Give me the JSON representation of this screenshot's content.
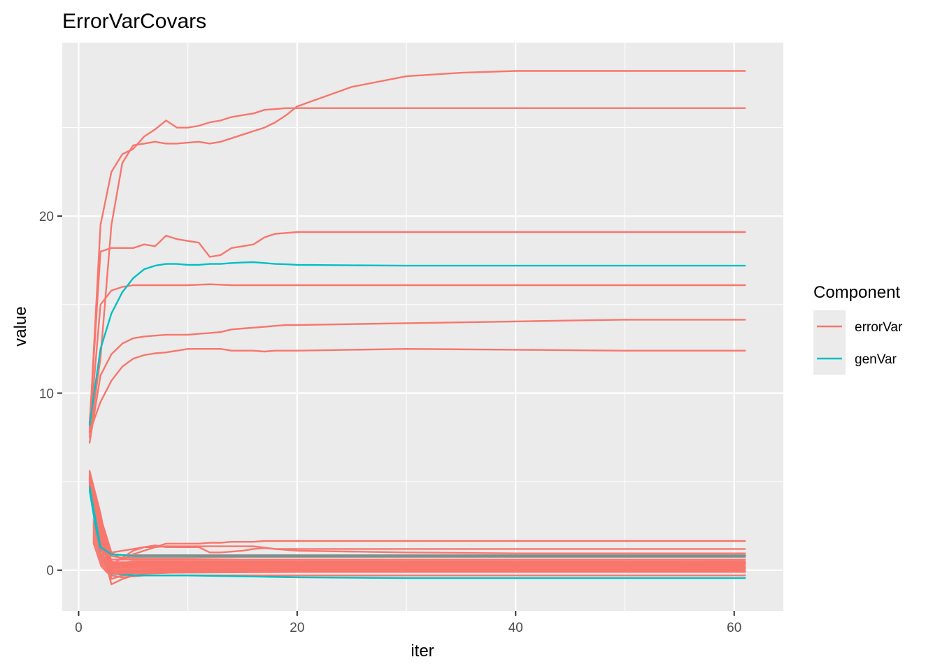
{
  "chart_data": {
    "type": "line",
    "title": "ErrorVarCovars",
    "xlabel": "iter",
    "ylabel": "value",
    "xlim": [
      -1.5,
      64.5
    ],
    "ylim": [
      -2.3,
      29.8
    ],
    "x_ticks": [
      0,
      20,
      40,
      60
    ],
    "y_ticks": [
      0,
      10,
      20
    ],
    "grid": true,
    "legend": {
      "title": "Component",
      "placement": "right",
      "entries": [
        {
          "label": "errorVar",
          "color": "#F8766D"
        },
        {
          "label": "genVar",
          "color": "#00BFC4"
        }
      ]
    },
    "series": [
      {
        "component": "errorVar",
        "x": [
          1,
          2,
          3,
          4,
          5,
          6,
          7,
          8,
          9,
          10,
          11,
          12,
          13,
          14,
          15,
          16,
          17,
          18,
          19,
          20,
          25,
          30,
          35,
          40,
          45,
          50,
          55,
          61
        ],
        "values": [
          7.5,
          12.0,
          19.5,
          23.0,
          24.0,
          24.1,
          24.2,
          24.1,
          24.1,
          24.15,
          24.2,
          24.1,
          24.2,
          24.4,
          24.6,
          24.8,
          25.0,
          25.3,
          25.7,
          26.2,
          27.3,
          27.9,
          28.1,
          28.2,
          28.2,
          28.2,
          28.2,
          28.2
        ]
      },
      {
        "component": "errorVar",
        "x": [
          1,
          2,
          3,
          4,
          5,
          6,
          7,
          8,
          9,
          10,
          11,
          12,
          13,
          14,
          15,
          16,
          17,
          18,
          19,
          20,
          30,
          40,
          50,
          61
        ],
        "values": [
          8.0,
          19.5,
          22.5,
          23.5,
          23.8,
          24.5,
          24.9,
          25.4,
          25.0,
          25.0,
          25.1,
          25.3,
          25.4,
          25.6,
          25.7,
          25.8,
          26.0,
          26.05,
          26.1,
          26.1,
          26.1,
          26.1,
          26.1,
          26.1
        ]
      },
      {
        "component": "errorVar",
        "x": [
          1,
          2,
          3,
          4,
          5,
          6,
          7,
          8,
          9,
          10,
          11,
          12,
          13,
          14,
          15,
          16,
          17,
          18,
          19,
          20,
          30,
          40,
          50,
          61
        ],
        "values": [
          8.3,
          18.0,
          18.2,
          18.2,
          18.2,
          18.4,
          18.3,
          18.9,
          18.7,
          18.6,
          18.5,
          17.7,
          17.8,
          18.2,
          18.3,
          18.4,
          18.8,
          19.0,
          19.05,
          19.1,
          19.1,
          19.1,
          19.1,
          19.1
        ]
      },
      {
        "component": "errorVar",
        "x": [
          1,
          2,
          3,
          4,
          5,
          6,
          7,
          8,
          10,
          12,
          14,
          16,
          18,
          20,
          30,
          40,
          50,
          61
        ],
        "values": [
          7.8,
          15.0,
          15.8,
          16.0,
          16.1,
          16.1,
          16.1,
          16.1,
          16.1,
          16.15,
          16.1,
          16.1,
          16.1,
          16.1,
          16.1,
          16.1,
          16.1,
          16.1
        ]
      },
      {
        "component": "errorVar",
        "x": [
          1,
          2,
          3,
          4,
          5,
          6,
          7,
          8,
          9,
          10,
          11,
          12,
          13,
          14,
          15,
          16,
          17,
          18,
          19,
          20,
          25,
          30,
          35,
          40,
          45,
          50,
          55,
          61
        ],
        "values": [
          7.2,
          11.0,
          12.2,
          12.8,
          13.1,
          13.2,
          13.25,
          13.3,
          13.3,
          13.3,
          13.35,
          13.4,
          13.45,
          13.6,
          13.65,
          13.7,
          13.75,
          13.8,
          13.85,
          13.85,
          13.9,
          13.95,
          14.0,
          14.05,
          14.1,
          14.15,
          14.15,
          14.15
        ]
      },
      {
        "component": "errorVar",
        "x": [
          1,
          2,
          3,
          4,
          5,
          6,
          7,
          8,
          9,
          10,
          11,
          12,
          13,
          14,
          15,
          16,
          17,
          18,
          20,
          30,
          40,
          50,
          61
        ],
        "values": [
          7.8,
          9.5,
          10.7,
          11.5,
          11.95,
          12.15,
          12.25,
          12.3,
          12.4,
          12.5,
          12.5,
          12.5,
          12.5,
          12.4,
          12.4,
          12.4,
          12.35,
          12.4,
          12.4,
          12.5,
          12.45,
          12.4,
          12.4
        ]
      },
      {
        "component": "genVar",
        "x": [
          1,
          2,
          3,
          4,
          5,
          6,
          7,
          8,
          9,
          10,
          11,
          12,
          13,
          14,
          15,
          16,
          17,
          18,
          19,
          20,
          25,
          30,
          40,
          50,
          61
        ],
        "values": [
          8.2,
          12.5,
          14.5,
          15.7,
          16.5,
          17.0,
          17.2,
          17.3,
          17.3,
          17.25,
          17.25,
          17.3,
          17.3,
          17.35,
          17.38,
          17.4,
          17.35,
          17.3,
          17.28,
          17.25,
          17.22,
          17.2,
          17.2,
          17.2,
          17.2
        ]
      },
      {
        "component": "errorVar",
        "x": [
          1,
          2,
          3,
          4,
          5,
          6,
          7,
          8,
          9,
          10,
          11,
          12,
          13,
          14,
          15,
          16,
          17,
          18,
          20,
          30,
          40,
          50,
          61
        ],
        "values": [
          5.5,
          3.0,
          1.0,
          0.6,
          0.9,
          1.1,
          1.3,
          1.5,
          1.5,
          1.5,
          1.5,
          1.55,
          1.55,
          1.6,
          1.6,
          1.6,
          1.65,
          1.65,
          1.65,
          1.65,
          1.65,
          1.65,
          1.65
        ]
      },
      {
        "component": "errorVar",
        "x": [
          1,
          2,
          3,
          4,
          5,
          6,
          7,
          8,
          9,
          10,
          11,
          12,
          13,
          14,
          15,
          16,
          17,
          18,
          20,
          30,
          40,
          50,
          61
        ],
        "values": [
          5.0,
          2.0,
          0.3,
          0.7,
          1.1,
          1.3,
          1.4,
          1.3,
          1.3,
          1.3,
          1.3,
          1.0,
          1.0,
          1.05,
          1.1,
          1.2,
          1.25,
          1.2,
          1.2,
          1.2,
          1.2,
          1.2,
          1.2
        ]
      },
      {
        "component": "errorVar",
        "x": [
          1,
          2,
          3,
          4,
          5,
          6,
          7,
          8,
          10,
          12,
          14,
          16,
          18,
          20,
          30,
          40,
          50,
          61
        ],
        "values": [
          5.2,
          2.5,
          1.0,
          1.1,
          1.2,
          1.3,
          1.3,
          1.35,
          1.35,
          1.35,
          1.35,
          1.35,
          1.2,
          1.1,
          1.0,
          0.95,
          0.95,
          0.95
        ]
      },
      {
        "component": "errorVar",
        "x": [
          1,
          2,
          3,
          4,
          5,
          6,
          8,
          10,
          15,
          20,
          30,
          40,
          50,
          61
        ],
        "values": [
          4.8,
          1.5,
          -0.8,
          -0.5,
          -0.3,
          -0.2,
          -0.15,
          -0.1,
          -0.1,
          -0.1,
          -0.1,
          -0.1,
          -0.1,
          -0.1
        ]
      },
      {
        "component": "errorVar",
        "x": [
          1,
          2,
          3,
          4,
          5,
          6,
          8,
          10,
          15,
          20,
          30,
          40,
          50,
          61
        ],
        "values": [
          5.3,
          2.2,
          -0.5,
          -0.3,
          -0.2,
          0.0,
          0.1,
          0.1,
          0.1,
          0.1,
          0.1,
          0.1,
          0.1,
          0.1
        ]
      },
      {
        "component": "errorVar",
        "x": [
          1,
          2,
          3,
          4,
          5,
          6,
          8,
          10,
          15,
          20,
          30,
          40,
          50,
          61
        ],
        "values": [
          4.6,
          1.0,
          0.2,
          0.4,
          0.5,
          0.5,
          0.5,
          0.5,
          0.5,
          0.5,
          0.5,
          0.5,
          0.5,
          0.5
        ]
      },
      {
        "component": "errorVar",
        "x": [
          1,
          2,
          3,
          4,
          5,
          6,
          8,
          10,
          15,
          20,
          30,
          40,
          50,
          61
        ],
        "values": [
          5.6,
          2.8,
          0.5,
          0.3,
          0.3,
          0.3,
          0.3,
          0.3,
          0.3,
          0.3,
          0.3,
          0.3,
          0.3,
          0.3
        ]
      },
      {
        "component": "errorVar",
        "x": [
          1,
          2,
          3,
          4,
          5,
          6,
          8,
          10,
          15,
          20,
          30,
          40,
          50,
          61
        ],
        "values": [
          4.9,
          1.6,
          0.0,
          -0.2,
          -0.1,
          -0.05,
          0.0,
          0.0,
          0.0,
          0.0,
          0.0,
          0.0,
          0.0,
          0.0
        ]
      },
      {
        "component": "errorVar",
        "x": [
          1,
          2,
          3,
          4,
          5,
          6,
          8,
          10,
          15,
          20,
          30,
          40,
          50,
          61
        ],
        "values": [
          5.4,
          2.3,
          0.8,
          0.7,
          0.7,
          0.7,
          0.7,
          0.7,
          0.75,
          0.75,
          0.75,
          0.75,
          0.75,
          0.75
        ]
      },
      {
        "component": "errorVar",
        "x": [
          1,
          2,
          3,
          4,
          5,
          6,
          8,
          10,
          15,
          20,
          30,
          40,
          50,
          61
        ],
        "values": [
          5.1,
          1.8,
          -0.3,
          -0.4,
          -0.35,
          -0.3,
          -0.3,
          -0.3,
          -0.3,
          -0.3,
          -0.3,
          -0.3,
          -0.3,
          -0.3
        ]
      },
      {
        "component": "errorVar",
        "x": [
          1,
          2,
          3,
          4,
          5,
          6,
          8,
          10,
          15,
          20,
          30,
          40,
          50,
          61
        ],
        "values": [
          4.7,
          1.2,
          0.6,
          0.6,
          0.6,
          0.6,
          0.6,
          0.6,
          0.6,
          0.6,
          0.6,
          0.6,
          0.6,
          0.6
        ]
      },
      {
        "component": "errorVar",
        "x": [
          1,
          2,
          3,
          4,
          5,
          6,
          8,
          10,
          15,
          20,
          30,
          40,
          50,
          61
        ],
        "values": [
          5.5,
          2.6,
          0.4,
          0.4,
          0.4,
          0.4,
          0.4,
          0.4,
          0.4,
          0.4,
          0.4,
          0.4,
          0.4,
          0.4
        ]
      },
      {
        "component": "errorVar",
        "x": [
          1,
          2,
          3,
          4,
          5,
          6,
          8,
          10,
          15,
          20,
          30,
          40,
          50,
          61
        ],
        "values": [
          5.0,
          1.4,
          0.2,
          0.2,
          0.2,
          0.2,
          0.2,
          0.2,
          0.2,
          0.2,
          0.2,
          0.2,
          0.2,
          0.2
        ]
      },
      {
        "component": "errorVar",
        "x": [
          1,
          2,
          3,
          4,
          5,
          6,
          8,
          10,
          15,
          20,
          30,
          40,
          50,
          61
        ],
        "values": [
          5.2,
          2.0,
          -0.1,
          -0.05,
          -0.05,
          -0.05,
          -0.05,
          -0.05,
          -0.05,
          -0.05,
          -0.05,
          -0.05,
          -0.05,
          -0.05
        ]
      },
      {
        "component": "errorVar",
        "x": [
          1,
          2,
          3,
          4,
          5,
          6,
          8,
          10,
          15,
          20,
          30,
          40,
          50,
          61
        ],
        "values": [
          4.8,
          1.1,
          0.9,
          0.85,
          0.85,
          0.85,
          0.85,
          0.85,
          0.85,
          0.85,
          0.85,
          0.85,
          0.85,
          0.85
        ]
      },
      {
        "component": "errorVar",
        "x": [
          1,
          2,
          3,
          4,
          5,
          6,
          8,
          10,
          15,
          20,
          30,
          40,
          50,
          61
        ],
        "values": [
          5.3,
          2.4,
          0.3,
          0.35,
          0.35,
          0.35,
          0.35,
          0.35,
          0.35,
          0.35,
          0.35,
          0.35,
          0.35,
          0.35
        ]
      },
      {
        "component": "errorVar",
        "x": [
          1,
          2,
          3,
          4,
          5,
          6,
          8,
          10,
          15,
          20,
          30,
          40,
          50,
          61
        ],
        "values": [
          5.6,
          3.2,
          0.1,
          0.15,
          0.15,
          0.15,
          0.15,
          0.15,
          0.15,
          0.15,
          0.15,
          0.15,
          0.15,
          0.15
        ]
      },
      {
        "component": "errorVar",
        "x": [
          1,
          2,
          3,
          4,
          5,
          6,
          8,
          10,
          15,
          20,
          30,
          40,
          50,
          61
        ],
        "values": [
          4.9,
          1.7,
          0.45,
          0.45,
          0.45,
          0.45,
          0.45,
          0.45,
          0.45,
          0.45,
          0.45,
          0.45,
          0.45,
          0.45
        ]
      },
      {
        "component": "genVar",
        "x": [
          1,
          2,
          3,
          4,
          5,
          6,
          8,
          10,
          15,
          20,
          30,
          40,
          50,
          61
        ],
        "values": [
          4.5,
          0.8,
          -0.2,
          -0.25,
          -0.3,
          -0.3,
          -0.3,
          -0.3,
          -0.35,
          -0.4,
          -0.45,
          -0.45,
          -0.45,
          -0.45
        ]
      },
      {
        "component": "genVar",
        "x": [
          1,
          2,
          3,
          4,
          5,
          6,
          8,
          10,
          15,
          20,
          30,
          40,
          50,
          61
        ],
        "values": [
          4.7,
          1.3,
          0.9,
          0.85,
          0.8,
          0.8,
          0.8,
          0.8,
          0.8,
          0.8,
          0.8,
          0.8,
          0.8,
          0.8
        ]
      }
    ]
  }
}
